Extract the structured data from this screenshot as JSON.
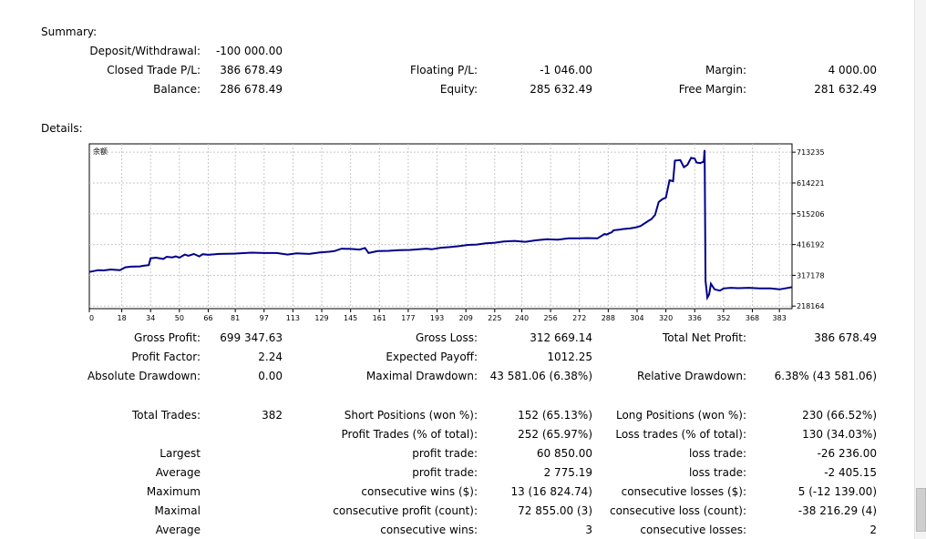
{
  "summary": {
    "heading": "Summary:",
    "deposit_label": "Deposit/Withdrawal:",
    "deposit_value": "-100 000.00",
    "closed_label": "Closed Trade P/L:",
    "closed_value": "386 678.49",
    "floating_label": "Floating P/L:",
    "floating_value": "-1 046.00",
    "margin_label": "Margin:",
    "margin_value": "4 000.00",
    "balance_label": "Balance:",
    "balance_value": "286 678.49",
    "equity_label": "Equity:",
    "equity_value": "285 632.49",
    "free_margin_label": "Free Margin:",
    "free_margin_value": "281 632.49"
  },
  "details": {
    "heading": "Details:",
    "gross_profit_label": "Gross Profit:",
    "gross_profit_value": "699 347.63",
    "gross_loss_label": "Gross Loss:",
    "gross_loss_value": "312 669.14",
    "total_net_label": "Total Net Profit:",
    "total_net_value": "386 678.49",
    "profit_factor_label": "Profit Factor:",
    "profit_factor_value": "2.24",
    "expected_payoff_label": "Expected Payoff:",
    "expected_payoff_value": "1012.25",
    "abs_dd_label": "Absolute Drawdown:",
    "abs_dd_value": "0.00",
    "max_dd_label": "Maximal Drawdown:",
    "max_dd_value": "43 581.06 (6.38%)",
    "rel_dd_label": "Relative Drawdown:",
    "rel_dd_value": "6.38% (43 581.06)",
    "total_trades_label": "Total Trades:",
    "total_trades_value": "382",
    "short_label": "Short Positions (won %):",
    "short_value": "152 (65.13%)",
    "long_label": "Long Positions (won %):",
    "long_value": "230 (66.52%)",
    "profit_trades_label": "Profit Trades (% of total):",
    "profit_trades_value": "252 (65.97%)",
    "loss_trades_label": "Loss trades (% of total):",
    "loss_trades_value": "130 (34.03%)",
    "largest_label": "Largest",
    "largest_profit_label": "profit trade:",
    "largest_profit_value": "60 850.00",
    "largest_loss_label": "loss trade:",
    "largest_loss_value": "-26 236.00",
    "average_label": "Average",
    "avg_profit_label": "profit trade:",
    "avg_profit_value": "2 775.19",
    "avg_loss_label": "loss trade:",
    "avg_loss_value": "-2 405.15",
    "maximum_label": "Maximum",
    "max_cons_wins_label": "consecutive wins ($):",
    "max_cons_wins_value": "13 (16 824.74)",
    "max_cons_losses_label": "consecutive losses ($):",
    "max_cons_losses_value": "5 (-12 139.00)",
    "maximal_label": "Maximal",
    "maximal_cons_profit_label": "consecutive profit (count):",
    "maximal_cons_profit_value": "72 855.00 (3)",
    "maximal_cons_loss_label": "consecutive loss (count):",
    "maximal_cons_loss_value": "-38 216.29 (4)",
    "average2_label": "Average",
    "avg_cons_wins_label": "consecutive wins:",
    "avg_cons_wins_value": "3",
    "avg_cons_losses_label": "consecutive losses:",
    "avg_cons_losses_value": "2"
  },
  "chart_data": {
    "type": "line",
    "title": "余额",
    "x_ticks": [
      "0",
      "18",
      "34",
      "50",
      "66",
      "81",
      "97",
      "113",
      "129",
      "145",
      "161",
      "177",
      "193",
      "209",
      "225",
      "240",
      "256",
      "272",
      "288",
      "304",
      "320",
      "336",
      "352",
      "368",
      "383"
    ],
    "y_ticks": [
      "218164",
      "317178",
      "416192",
      "515206",
      "614221",
      "713235"
    ],
    "xlim": [
      0,
      390
    ],
    "ylim": [
      210000,
      740000
    ],
    "grid": true,
    "line_color": "#00008b",
    "series": [
      {
        "x": [
          0,
          5,
          8,
          12,
          17,
          20,
          23,
          28,
          30,
          33,
          34,
          37,
          41,
          43,
          46,
          48,
          50,
          53,
          55,
          58,
          61,
          63,
          66,
          72,
          80,
          90,
          97,
          104,
          110,
          115,
          122,
          128,
          133,
          136,
          140,
          145,
          150,
          153,
          155,
          160,
          166,
          172,
          178,
          183,
          187,
          190,
          195,
          200,
          205,
          210,
          215,
          220,
          225,
          230,
          236,
          242,
          248,
          254,
          260,
          266,
          271,
          276,
          282,
          286,
          287,
          290,
          291,
          294,
          296,
          300,
          303,
          306,
          310,
          312,
          314,
          316,
          318,
          320,
          322,
          324,
          325,
          328,
          330,
          332,
          334,
          336,
          337,
          339,
          341,
          341.5,
          342,
          343,
          344,
          345,
          347,
          350,
          352,
          356,
          360,
          366,
          372,
          378,
          383,
          386,
          390
        ],
        "y": [
          328000,
          334000,
          333000,
          336000,
          334000,
          343000,
          345000,
          346000,
          348000,
          350000,
          372000,
          374000,
          370000,
          377000,
          375000,
          378000,
          374000,
          384000,
          380000,
          386000,
          378000,
          385000,
          383000,
          386000,
          387000,
          390000,
          389000,
          389000,
          384000,
          388000,
          386000,
          391000,
          393000,
          395000,
          403000,
          402000,
          400000,
          405000,
          389000,
          395000,
          396000,
          398000,
          399000,
          401000,
          403000,
          401000,
          406000,
          408000,
          411000,
          415000,
          416000,
          420000,
          422000,
          426000,
          428000,
          425000,
          430000,
          433000,
          432000,
          436000,
          436000,
          437000,
          436000,
          450000,
          448000,
          456000,
          462000,
          464000,
          466000,
          468000,
          471000,
          476000,
          491000,
          498000,
          512000,
          553000,
          562000,
          567000,
          623000,
          620000,
          686000,
          688000,
          665000,
          673000,
          695000,
          693000,
          680000,
          678000,
          683000,
          720000,
          300000,
          245000,
          256000,
          290000,
          272000,
          268000,
          275000,
          277000,
          276000,
          277000,
          275000,
          275000,
          272000,
          275000,
          279000
        ]
      }
    ]
  }
}
